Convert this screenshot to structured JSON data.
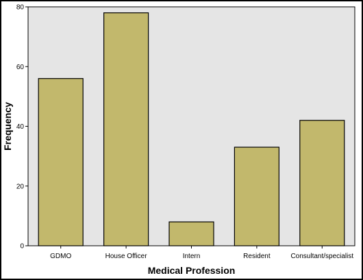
{
  "chart_data": {
    "type": "bar",
    "title": "",
    "xlabel": "Medical Profession",
    "ylabel": "Frequency",
    "categories": [
      "GDMO",
      "House Officer",
      "Intern",
      "Resident",
      "Consultant/specialist"
    ],
    "values": [
      56,
      78,
      8,
      33,
      42
    ],
    "ylim": [
      0,
      80
    ],
    "yticks": [
      0,
      20,
      40,
      60,
      80
    ],
    "grid": false,
    "legend": "none",
    "colors": {
      "bar_fill": "#c2b86c",
      "bar_stroke": "#000000",
      "plot_background": "#e5e5e5",
      "frame": "#000000"
    }
  }
}
